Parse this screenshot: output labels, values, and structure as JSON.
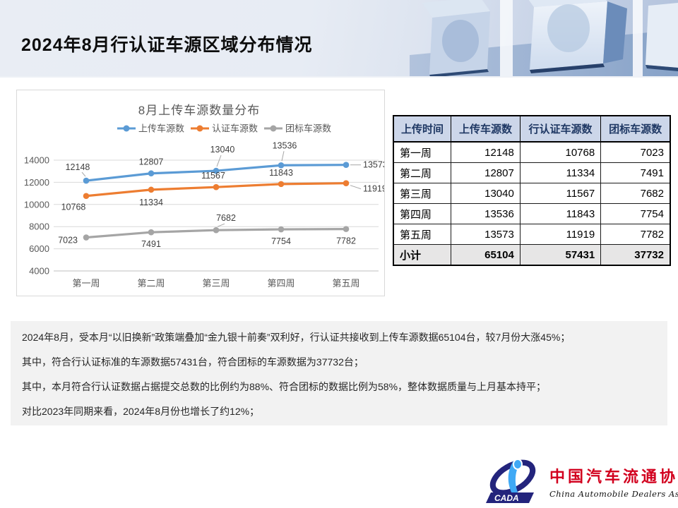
{
  "slide": {
    "title": "2024年8月行认证车源区域分布情况"
  },
  "chart_data": {
    "type": "line",
    "title": "8月上传车源数量分布",
    "categories": [
      "第一周",
      "第二周",
      "第三周",
      "第四周",
      "第五周"
    ],
    "series": [
      {
        "name": "上传车源数",
        "color": "#5B9BD5",
        "values": [
          12148,
          12807,
          13040,
          13536,
          13573
        ]
      },
      {
        "name": "认证车源数",
        "color": "#ED7D31",
        "values": [
          10768,
          11334,
          11567,
          11843,
          11919
        ]
      },
      {
        "name": "团标车源数",
        "color": "#A5A5A5",
        "values": [
          7023,
          7491,
          7682,
          7754,
          7782
        ]
      }
    ],
    "ylim": [
      4000,
      14000
    ],
    "ytick_step": 2000,
    "grid": true,
    "legend_position": "top",
    "data_labels": true
  },
  "table": {
    "headers": [
      "上传时间",
      "上传车源数",
      "行认证车源数",
      "团标车源数"
    ],
    "rows": [
      [
        "第一周",
        "12148",
        "10768",
        "7023"
      ],
      [
        "第二周",
        "12807",
        "11334",
        "7491"
      ],
      [
        "第三周",
        "13040",
        "11567",
        "7682"
      ],
      [
        "第四周",
        "13536",
        "11843",
        "7754"
      ],
      [
        "第五周",
        "13573",
        "11919",
        "7782"
      ]
    ],
    "subtotal": [
      "小计",
      "65104",
      "57431",
      "37732"
    ]
  },
  "notes": [
    "2024年8月，受本月“以旧换新”政策端叠加“金九银十前奏”双利好，行认证共接收到上传车源数据65104台，较7月份大涨45%；",
    "其中，符合行认证标准的车源数据57431台，符合团标的车源数据为37732台；",
    "其中，本月符合行认证数据占据提交总数的比例约为88%、符合团标的数据比例为58%，整体数据质量与上月基本持平；",
    "对比2023年同期来看，2024年8月份也增长了约12%；"
  ],
  "watermark": {
    "text_cn": "中国汽车流通协会",
    "text_en": "China Automobile Dealers Association"
  },
  "logo": {
    "acronym": "CADA",
    "name_cn": "中国汽车流通协会",
    "name_en": "China Automobile Dealers Association"
  },
  "colors": {
    "series_upload": "#5B9BD5",
    "series_certified": "#ED7D31",
    "series_group": "#A5A5A5",
    "table_header_bg": "#ccd6e9",
    "table_header_text": "#1f3864",
    "subtotal_bg": "#e7e6e6",
    "notes_bg": "#f2f2f2",
    "logo_red": "#d2001e",
    "logo_navy": "#23247c"
  }
}
